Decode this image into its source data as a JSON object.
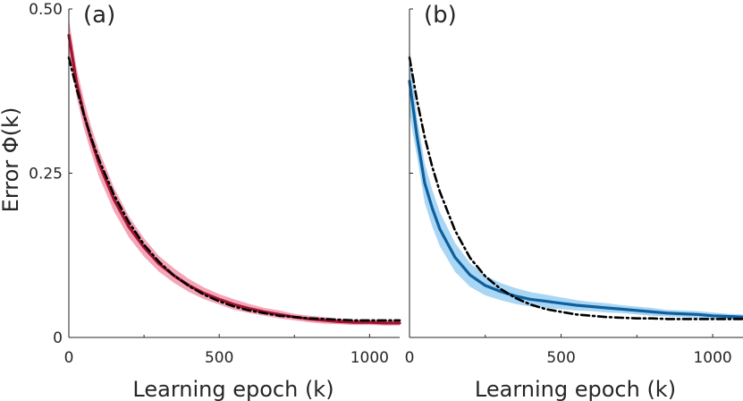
{
  "chart_data": [
    {
      "type": "line",
      "panel_label": "(a)",
      "xlabel": "Learning epoch (k)",
      "ylabel": "Error Φ(k)",
      "xlim": [
        0,
        1100
      ],
      "ylim": [
        0,
        0.5
      ],
      "xticks": [
        0,
        500,
        1000
      ],
      "xtick_labels": [
        "0",
        "500",
        "1000"
      ],
      "yticks": [
        0,
        0.25,
        0.5
      ],
      "ytick_labels": [
        "0",
        "0.25",
        "0.50"
      ],
      "grid": false,
      "legend": "none",
      "x": [
        0,
        25,
        50,
        75,
        100,
        150,
        200,
        250,
        300,
        350,
        400,
        450,
        500,
        550,
        600,
        650,
        700,
        750,
        800,
        850,
        900,
        950,
        1000,
        1050,
        1100
      ],
      "series": [
        {
          "style": "solid",
          "color": "#a2142f",
          "band_color": "#f4a6b8",
          "values": [
            0.46,
            0.39,
            0.34,
            0.3,
            0.265,
            0.21,
            0.168,
            0.137,
            0.112,
            0.094,
            0.079,
            0.067,
            0.058,
            0.05,
            0.044,
            0.039,
            0.035,
            0.031,
            0.028,
            0.026,
            0.024,
            0.023,
            0.023,
            0.022,
            0.022
          ],
          "band_halfwidth": [
            0.025,
            0.022,
            0.022,
            0.02,
            0.02,
            0.018,
            0.016,
            0.014,
            0.012,
            0.011,
            0.01,
            0.009,
            0.008,
            0.008,
            0.007,
            0.006,
            0.006,
            0.005,
            0.005,
            0.005,
            0.004,
            0.004,
            0.004,
            0.004,
            0.004
          ]
        },
        {
          "style": "dash-dot",
          "color": "#000000",
          "values": [
            0.426,
            0.38,
            0.339,
            0.303,
            0.271,
            0.217,
            0.175,
            0.141,
            0.115,
            0.094,
            0.078,
            0.065,
            0.055,
            0.047,
            0.041,
            0.037,
            0.033,
            0.031,
            0.029,
            0.028,
            0.027,
            0.026,
            0.026,
            0.026,
            0.026
          ]
        }
      ]
    },
    {
      "type": "line",
      "panel_label": "(b)",
      "xlabel": "Learning epoch (k)",
      "ylabel": "",
      "xlim": [
        0,
        1100
      ],
      "ylim": [
        0,
        0.5
      ],
      "xticks": [
        0,
        500,
        1000
      ],
      "xtick_labels": [
        "0",
        "500",
        "1000"
      ],
      "yticks": [
        0,
        0.25,
        0.5
      ],
      "ytick_labels": [],
      "grid": false,
      "legend": "none",
      "x": [
        0,
        25,
        50,
        75,
        100,
        150,
        200,
        250,
        300,
        350,
        400,
        450,
        500,
        550,
        600,
        650,
        700,
        750,
        800,
        850,
        900,
        950,
        1000,
        1050,
        1100
      ],
      "series": [
        {
          "style": "solid",
          "color": "#0e5f9c",
          "band_color": "#a9d6f5",
          "values": [
            0.39,
            0.305,
            0.235,
            0.197,
            0.165,
            0.122,
            0.095,
            0.079,
            0.07,
            0.063,
            0.058,
            0.055,
            0.052,
            0.049,
            0.047,
            0.045,
            0.043,
            0.041,
            0.039,
            0.037,
            0.036,
            0.035,
            0.033,
            0.032,
            0.031
          ],
          "band_halfwidth": [
            0.05,
            0.03,
            0.03,
            0.028,
            0.026,
            0.022,
            0.018,
            0.015,
            0.013,
            0.012,
            0.011,
            0.01,
            0.009,
            0.008,
            0.007,
            0.007,
            0.006,
            0.006,
            0.006,
            0.005,
            0.005,
            0.005,
            0.005,
            0.004,
            0.004
          ]
        },
        {
          "style": "dash-dot",
          "color": "#000000",
          "values": [
            0.426,
            0.36,
            0.305,
            0.26,
            0.222,
            0.163,
            0.121,
            0.093,
            0.074,
            0.06,
            0.05,
            0.043,
            0.039,
            0.035,
            0.033,
            0.031,
            0.03,
            0.029,
            0.029,
            0.028,
            0.028,
            0.028,
            0.028,
            0.028,
            0.028
          ]
        }
      ]
    }
  ]
}
